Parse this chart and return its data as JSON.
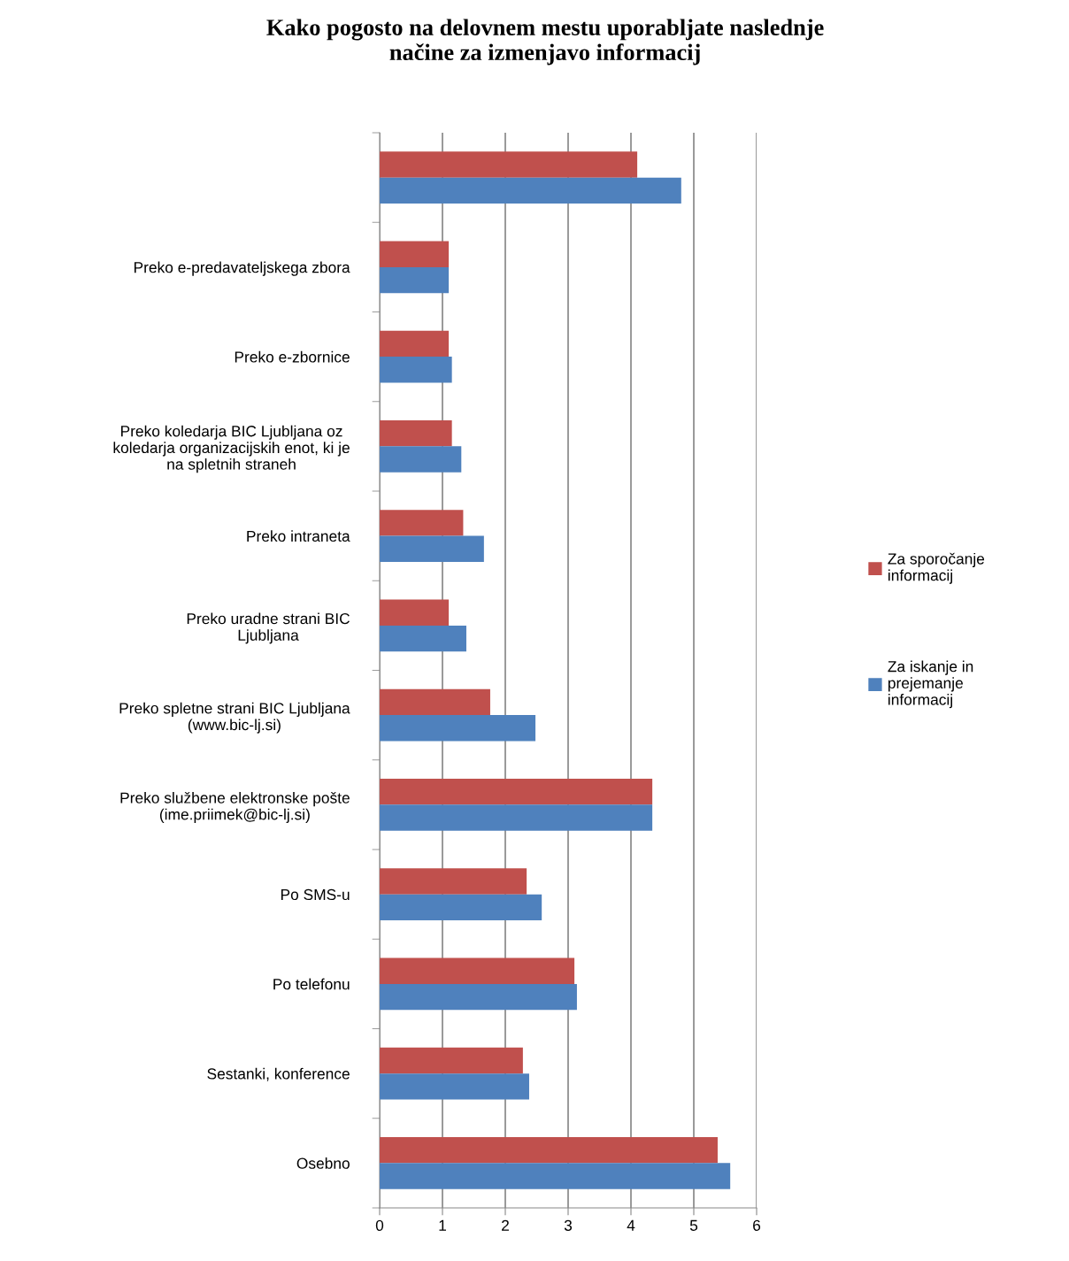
{
  "chart_data": {
    "type": "bar",
    "orientation": "horizontal",
    "title": "Kako pogosto na delovnem mestu uporabljate naslednje\nnačine za izmenjavo informacij",
    "categories": [
      null,
      "Preko e-predavateljskega zbora",
      "Preko e-zbornice",
      "Preko koledarja BIC Ljubljana oz\nkoledarja organizacijskih enot, ki je\nna spletnih straneh",
      "Preko intraneta",
      "Preko uradne strani BIC\nLjubljana",
      "Preko spletne strani BIC Ljubljana\n(www.bic-lj.si)",
      "Preko službene elektronske pošte\n(ime.priimek@bic-lj.si)",
      "Po SMS-u",
      "Po telefonu",
      "Sestanki, konference",
      "Osebno"
    ],
    "series": [
      {
        "name": "Za sporočanje\ninformacij",
        "color": "#c0504d",
        "values": [
          4.1,
          1.1,
          1.1,
          1.15,
          1.33,
          1.1,
          1.76,
          4.34,
          2.34,
          3.1,
          2.28,
          5.38
        ]
      },
      {
        "name": "Za iskanje in\nprejemanje\ninformacij",
        "color": "#4f81bd",
        "values": [
          4.8,
          1.1,
          1.15,
          1.3,
          1.66,
          1.38,
          2.48,
          4.34,
          2.58,
          3.14,
          2.38,
          5.58
        ]
      }
    ],
    "xlim": [
      0,
      6
    ],
    "xticks": [
      0,
      1,
      2,
      3,
      4,
      5,
      6
    ],
    "grid": "x",
    "legend": "right"
  }
}
